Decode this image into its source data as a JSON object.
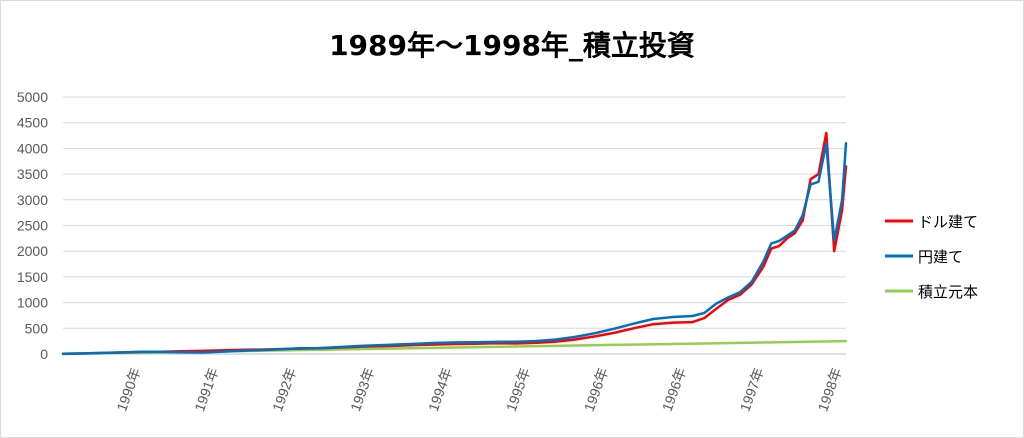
{
  "chart_data": {
    "type": "line",
    "title": "1989年～1998年_積立投資",
    "xlabel": "",
    "ylabel": "",
    "ylim": [
      0,
      5000
    ],
    "yticks": [
      0,
      500,
      1000,
      1500,
      2000,
      2500,
      3000,
      3500,
      4000,
      4500,
      5000
    ],
    "xlim": [
      1989.0,
      1998.95
    ],
    "xtick_labels": [
      "1990年",
      "1991年",
      "1992年",
      "1993年",
      "1994年",
      "1995年",
      "1996年",
      "1996年",
      "1997年",
      "1998年"
    ],
    "grid": true,
    "legend_position": "right",
    "series": [
      {
        "name": "ドル建て",
        "color": "#ff0000",
        "x": [
          1989.0,
          1989.25,
          1989.5,
          1989.75,
          1990.0,
          1990.25,
          1990.5,
          1990.75,
          1991.0,
          1991.25,
          1991.5,
          1991.75,
          1992.0,
          1992.25,
          1992.5,
          1992.75,
          1993.0,
          1993.25,
          1993.5,
          1993.75,
          1994.0,
          1994.25,
          1994.5,
          1994.75,
          1995.0,
          1995.25,
          1995.5,
          1995.75,
          1996.0,
          1996.25,
          1996.5,
          1996.75,
          1997.0,
          1997.15,
          1997.3,
          1997.45,
          1997.6,
          1997.75,
          1997.9,
          1998.0,
          1998.1,
          1998.2,
          1998.3,
          1998.4,
          1998.5,
          1998.6,
          1998.7,
          1998.8,
          1998.9,
          1998.95
        ],
        "values": [
          5,
          10,
          20,
          30,
          40,
          45,
          55,
          60,
          70,
          80,
          85,
          95,
          105,
          110,
          125,
          140,
          150,
          160,
          175,
          185,
          195,
          200,
          210,
          205,
          215,
          240,
          280,
          340,
          410,
          500,
          580,
          610,
          620,
          700,
          880,
          1050,
          1150,
          1350,
          1700,
          2050,
          2100,
          2250,
          2350,
          2600,
          3400,
          3500,
          4300,
          2000,
          2800,
          3650
        ]
      },
      {
        "name": "円建て",
        "color": "#0070c0",
        "x": [
          1989.0,
          1989.25,
          1989.5,
          1989.75,
          1990.0,
          1990.25,
          1990.5,
          1990.75,
          1991.0,
          1991.25,
          1991.5,
          1991.75,
          1992.0,
          1992.25,
          1992.5,
          1992.75,
          1993.0,
          1993.25,
          1993.5,
          1993.75,
          1994.0,
          1994.25,
          1994.5,
          1994.75,
          1995.0,
          1995.25,
          1995.5,
          1995.75,
          1996.0,
          1996.25,
          1996.5,
          1996.75,
          1997.0,
          1997.15,
          1997.3,
          1997.45,
          1997.6,
          1997.75,
          1997.9,
          1998.0,
          1998.1,
          1998.2,
          1998.3,
          1998.4,
          1998.5,
          1998.6,
          1998.7,
          1998.8,
          1998.9,
          1998.95
        ],
        "values": [
          5,
          12,
          22,
          32,
          42,
          40,
          35,
          30,
          45,
          60,
          75,
          90,
          110,
          115,
          135,
          155,
          170,
          185,
          200,
          215,
          225,
          230,
          235,
          240,
          250,
          280,
          330,
          400,
          490,
          590,
          680,
          720,
          740,
          800,
          980,
          1100,
          1200,
          1400,
          1800,
          2150,
          2200,
          2300,
          2400,
          2700,
          3300,
          3350,
          4100,
          2200,
          3000,
          4100
        ]
      },
      {
        "name": "積立元本",
        "color": "#92d050",
        "x": [
          1989.0,
          1998.95
        ],
        "values": [
          0,
          250
        ]
      }
    ]
  }
}
